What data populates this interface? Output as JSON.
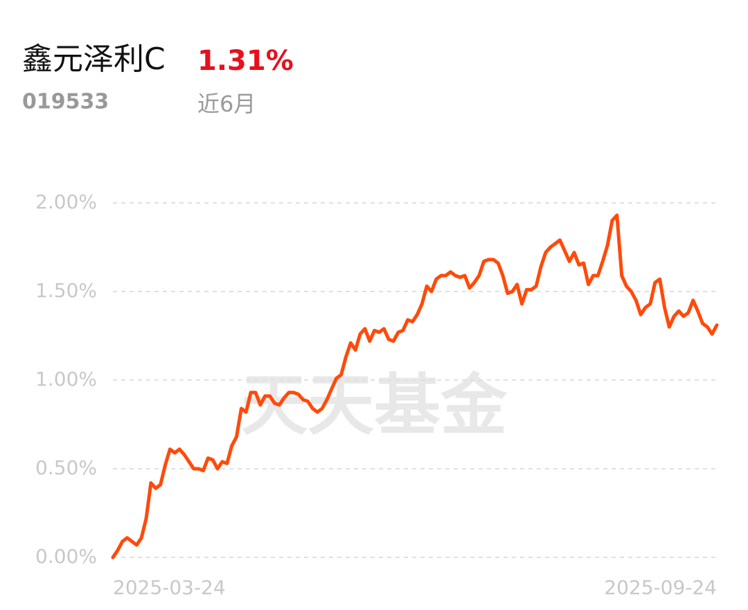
{
  "chart_data": {
    "type": "line",
    "title": "鑫元泽利C",
    "title_value": "1.31%",
    "code": "019533",
    "period": "近6月",
    "watermark": "天天基金",
    "categories": [
      "2025-03-24",
      null,
      null,
      null,
      null,
      null,
      null,
      null,
      null,
      null,
      null,
      null,
      null,
      null,
      null,
      null,
      null,
      null,
      null,
      null,
      null,
      null,
      null,
      null,
      null,
      null,
      null,
      null,
      null,
      null,
      null,
      null,
      null,
      null,
      null,
      null,
      null,
      null,
      null,
      null,
      null,
      null,
      null,
      null,
      null,
      null,
      null,
      null,
      null,
      null,
      null,
      null,
      null,
      null,
      null,
      null,
      null,
      null,
      null,
      null,
      null,
      null,
      null,
      null,
      null,
      null,
      null,
      null,
      null,
      null,
      null,
      null,
      null,
      null,
      null,
      null,
      null,
      null,
      null,
      null,
      null,
      null,
      null,
      null,
      null,
      null,
      null,
      null,
      null,
      null,
      null,
      null,
      null,
      null,
      null,
      null,
      null,
      null,
      null,
      null,
      null,
      null,
      null,
      null,
      null,
      null,
      null,
      null,
      null,
      null,
      null,
      null,
      null,
      null,
      null,
      null,
      null,
      null,
      null,
      null,
      null,
      null,
      null,
      null,
      null,
      null,
      null,
      "2025-09-24"
    ],
    "values": [
      0.0,
      0.04,
      0.09,
      0.11,
      0.09,
      0.07,
      0.11,
      0.22,
      0.42,
      0.39,
      0.41,
      0.52,
      0.61,
      0.59,
      0.61,
      0.58,
      0.54,
      0.5,
      0.5,
      0.49,
      0.56,
      0.55,
      0.5,
      0.54,
      0.53,
      0.63,
      0.68,
      0.84,
      0.82,
      0.93,
      0.93,
      0.86,
      0.91,
      0.91,
      0.87,
      0.86,
      0.9,
      0.93,
      0.93,
      0.92,
      0.89,
      0.88,
      0.84,
      0.82,
      0.84,
      0.89,
      0.95,
      1.01,
      1.03,
      1.13,
      1.21,
      1.17,
      1.26,
      1.29,
      1.22,
      1.28,
      1.27,
      1.29,
      1.23,
      1.22,
      1.27,
      1.28,
      1.34,
      1.33,
      1.37,
      1.43,
      1.53,
      1.5,
      1.57,
      1.59,
      1.59,
      1.61,
      1.59,
      1.58,
      1.59,
      1.52,
      1.55,
      1.59,
      1.67,
      1.68,
      1.68,
      1.66,
      1.59,
      1.49,
      1.5,
      1.54,
      1.43,
      1.51,
      1.51,
      1.53,
      1.64,
      1.72,
      1.75,
      1.77,
      1.79,
      1.73,
      1.67,
      1.72,
      1.65,
      1.66,
      1.54,
      1.59,
      1.59,
      1.67,
      1.76,
      1.9,
      1.93,
      1.59,
      1.53,
      1.5,
      1.45,
      1.37,
      1.41,
      1.43,
      1.55,
      1.57,
      1.41,
      1.3,
      1.36,
      1.39,
      1.36,
      1.38,
      1.45,
      1.39,
      1.32,
      1.3,
      1.26,
      1.31
    ],
    "color": "#ff4a0a",
    "ylim": [
      0,
      2
    ],
    "yticks": [
      {
        "value": 0,
        "label": "0.00%"
      },
      {
        "value": 0.5,
        "label": "0.50%"
      },
      {
        "value": 1,
        "label": "1.00%"
      },
      {
        "value": 1.5,
        "label": "1.50%"
      },
      {
        "value": 2,
        "label": "2.00%"
      }
    ],
    "grid": true
  }
}
